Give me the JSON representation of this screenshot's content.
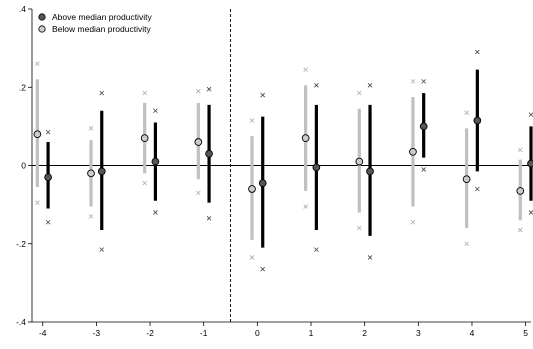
{
  "chart_data": {
    "type": "scatter",
    "title": "",
    "xlabel": "",
    "ylabel": "",
    "xlim": [
      -4.2,
      5.1
    ],
    "ylim": [
      -0.4,
      0.4
    ],
    "xticks": [
      -4,
      -3,
      -2,
      -1,
      0,
      1,
      2,
      3,
      4,
      5
    ],
    "yticks": [
      -0.4,
      -0.2,
      0,
      0.2,
      0.4
    ],
    "ytick_labels": [
      "-.4",
      "-.2",
      "0",
      ".2",
      ".4"
    ],
    "xtick_labels": [
      "-4",
      "-3",
      "-2",
      "-1",
      "0",
      "1",
      "2",
      "3",
      "4",
      "5"
    ],
    "reference_line_x": -0.5,
    "reference_line_y": 0,
    "legend": {
      "position": "top-left"
    },
    "series": [
      {
        "name": "Above median productivity",
        "color": "#555555",
        "ci_color": "#000000",
        "x_offset": 0.1,
        "points": [
          {
            "x": -4,
            "y": -0.03,
            "ci90": [
              -0.11,
              0.06
            ],
            "ci95": [
              -0.145,
              0.085
            ]
          },
          {
            "x": -3,
            "y": -0.015,
            "ci90": [
              -0.165,
              0.14
            ],
            "ci95": [
              -0.215,
              0.185
            ]
          },
          {
            "x": -2,
            "y": 0.01,
            "ci90": [
              -0.09,
              0.11
            ],
            "ci95": [
              -0.12,
              0.14
            ]
          },
          {
            "x": -1,
            "y": 0.03,
            "ci90": [
              -0.095,
              0.155
            ],
            "ci95": [
              -0.135,
              0.195
            ]
          },
          {
            "x": 0,
            "y": -0.045,
            "ci90": [
              -0.21,
              0.125
            ],
            "ci95": [
              -0.265,
              0.18
            ]
          },
          {
            "x": 1,
            "y": -0.005,
            "ci90": [
              -0.165,
              0.155
            ],
            "ci95": [
              -0.215,
              0.205
            ]
          },
          {
            "x": 2,
            "y": -0.015,
            "ci90": [
              -0.18,
              0.155
            ],
            "ci95": [
              -0.235,
              0.205
            ]
          },
          {
            "x": 3,
            "y": 0.1,
            "ci90": [
              0.02,
              0.185
            ],
            "ci95": [
              -0.01,
              0.215
            ]
          },
          {
            "x": 4,
            "y": 0.115,
            "ci90": [
              -0.015,
              0.245
            ],
            "ci95": [
              -0.06,
              0.29
            ]
          },
          {
            "x": 5,
            "y": 0.005,
            "ci90": [
              -0.09,
              0.1
            ],
            "ci95": [
              -0.12,
              0.13
            ]
          }
        ]
      },
      {
        "name": "Below median productivity",
        "color": "#cccccc",
        "ci_color": "#c0c0c0",
        "x_offset": -0.1,
        "points": [
          {
            "x": -4,
            "y": 0.08,
            "ci90": [
              -0.055,
              0.22
            ],
            "ci95": [
              -0.095,
              0.26
            ]
          },
          {
            "x": -3,
            "y": -0.02,
            "ci90": [
              -0.105,
              0.065
            ],
            "ci95": [
              -0.13,
              0.095
            ]
          },
          {
            "x": -2,
            "y": 0.07,
            "ci90": [
              -0.02,
              0.16
            ],
            "ci95": [
              -0.045,
              0.185
            ]
          },
          {
            "x": -1,
            "y": 0.06,
            "ci90": [
              -0.035,
              0.16
            ],
            "ci95": [
              -0.07,
              0.19
            ]
          },
          {
            "x": 0,
            "y": -0.06,
            "ci90": [
              -0.19,
              0.075
            ],
            "ci95": [
              -0.235,
              0.115
            ]
          },
          {
            "x": 1,
            "y": 0.07,
            "ci90": [
              -0.065,
              0.205
            ],
            "ci95": [
              -0.105,
              0.245
            ]
          },
          {
            "x": 2,
            "y": 0.01,
            "ci90": [
              -0.12,
              0.145
            ],
            "ci95": [
              -0.16,
              0.185
            ]
          },
          {
            "x": 3,
            "y": 0.035,
            "ci90": [
              -0.105,
              0.175
            ],
            "ci95": [
              -0.145,
              0.215
            ]
          },
          {
            "x": 4,
            "y": -0.035,
            "ci90": [
              -0.16,
              0.095
            ],
            "ci95": [
              -0.2,
              0.135
            ]
          },
          {
            "x": 5,
            "y": -0.065,
            "ci90": [
              -0.14,
              0.015
            ],
            "ci95": [
              -0.165,
              0.04
            ]
          }
        ]
      }
    ]
  }
}
